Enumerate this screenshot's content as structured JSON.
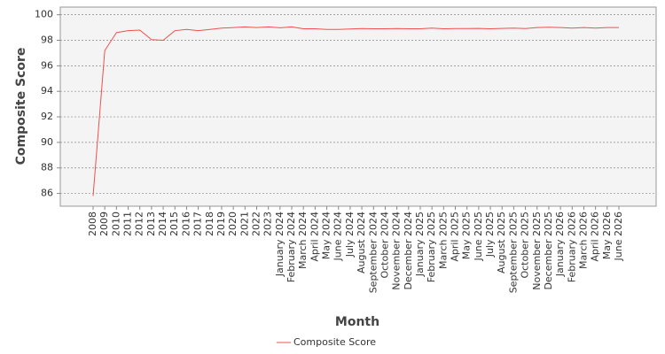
{
  "chart_data": {
    "type": "line",
    "y_label": "Composite Score",
    "x_label": "Month",
    "categories": [
      "2008",
      "2009",
      "2010",
      "2011",
      "2012",
      "2013",
      "2014",
      "2015",
      "2016",
      "2017",
      "2018",
      "2019",
      "2020",
      "2021",
      "2022",
      "2023",
      "January 2024",
      "February 2024",
      "March 2024",
      "April 2024",
      "May 2024",
      "June 2024",
      "July 2024",
      "August 2024",
      "September 2024",
      "October 2024",
      "November 2024",
      "December 2024",
      "January 2025",
      "February 2025",
      "March 2025",
      "April 2025",
      "May 2025",
      "June 2025",
      "July 2025",
      "August 2025",
      "September 2025",
      "October 2025",
      "November 2025",
      "December 2025",
      "January 2026",
      "February 2026",
      "March 2026",
      "April 2026",
      "May 2026",
      "June 2026"
    ],
    "series": [
      {
        "name": "Composite Score",
        "color": "#f05050",
        "values": [
          85.8,
          97.2,
          98.6,
          98.75,
          98.8,
          98.05,
          98.0,
          98.75,
          98.85,
          98.75,
          98.85,
          98.95,
          99.0,
          99.05,
          99.0,
          99.05,
          98.98,
          99.05,
          98.9,
          98.9,
          98.85,
          98.85,
          98.88,
          98.92,
          98.9,
          98.9,
          98.92,
          98.9,
          98.9,
          98.95,
          98.9,
          98.92,
          98.92,
          98.93,
          98.9,
          98.93,
          98.95,
          98.92,
          99.0,
          99.02,
          99.0,
          98.95,
          99.0,
          98.95,
          99.0,
          99.0
        ]
      }
    ],
    "ylim": [
      85.0,
      100.6
    ],
    "yticks": [
      86,
      88,
      90,
      92,
      94,
      96,
      98,
      100
    ],
    "grid": true,
    "legend": "bottom"
  }
}
